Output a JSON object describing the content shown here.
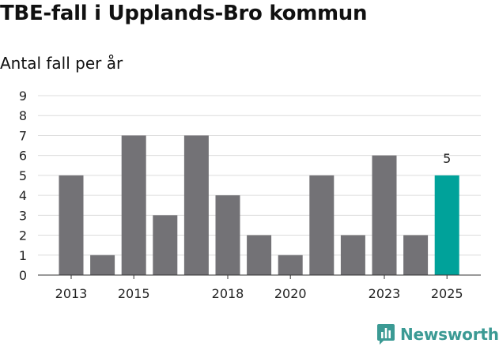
{
  "title": "TBE-fall i Upplands-Bro kommun",
  "brand": "Newsworthy",
  "chart_data": {
    "type": "bar",
    "title": "TBE-fall i Upplands-Bro kommun",
    "subtitle": "Antal fall per år",
    "xlabel": "",
    "ylabel": "Antal fall per år",
    "categories": [
      "2013",
      "2014",
      "2015",
      "2016",
      "2017",
      "2018",
      "2019",
      "2020",
      "2021",
      "2022",
      "2023",
      "2024",
      "2025"
    ],
    "values": [
      5,
      1,
      7,
      3,
      7,
      4,
      2,
      1,
      5,
      2,
      6,
      2,
      5
    ],
    "x_tick_labels": [
      "2013",
      "2015",
      "2018",
      "2020",
      "2023",
      "2025"
    ],
    "y_ticks": [
      0,
      1,
      2,
      3,
      4,
      5,
      6,
      7,
      8,
      9
    ],
    "ylim": [
      0,
      9
    ],
    "grid": true,
    "bar_color": "#737276",
    "highlight_index": 12,
    "highlight_color": "#00a29a",
    "annotations": [
      {
        "category": "2025",
        "text": "5"
      }
    ]
  }
}
